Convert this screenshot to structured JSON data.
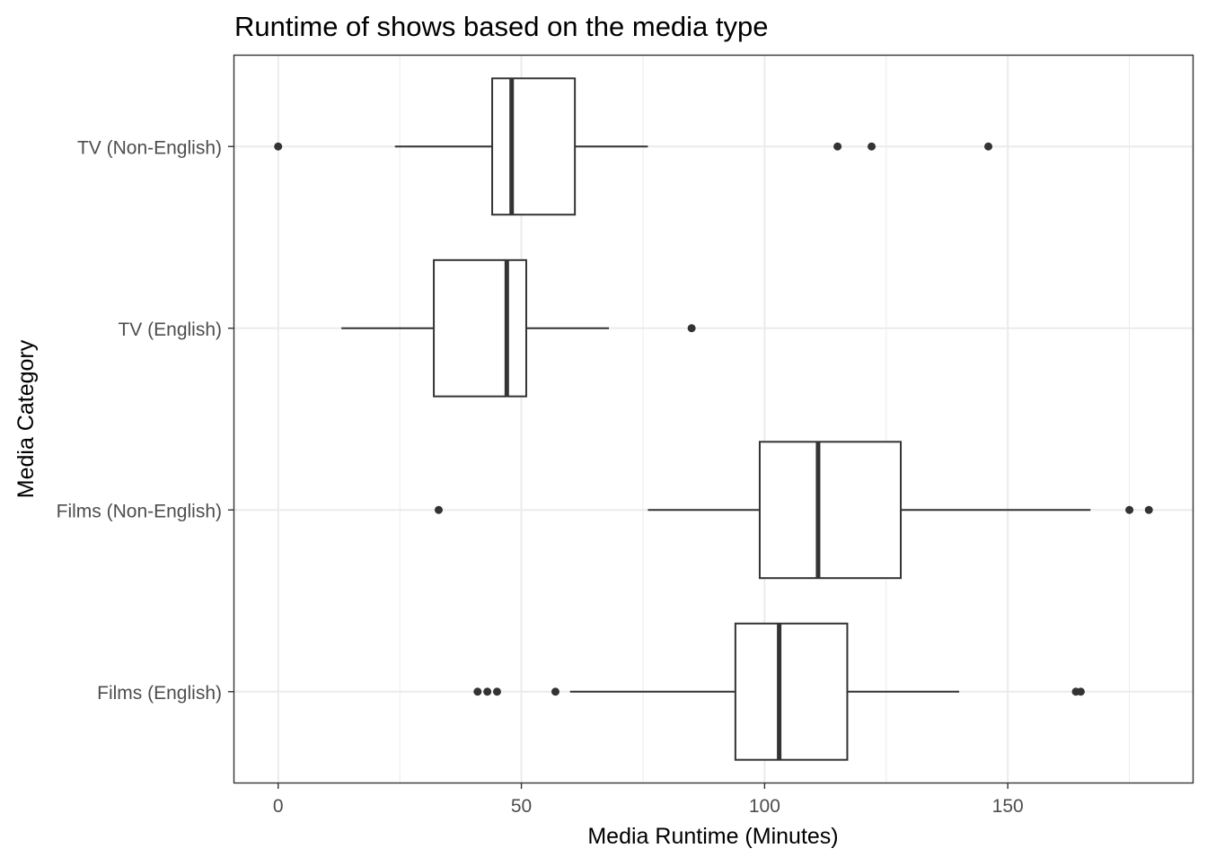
{
  "chart_data": {
    "type": "boxplot",
    "orientation": "horizontal",
    "title": "Runtime of shows based on the media type",
    "xlabel": "Media Runtime (Minutes)",
    "ylabel": "Media Category",
    "xlim": [
      -9,
      188
    ],
    "x_ticks": [
      0,
      50,
      100,
      150
    ],
    "x_tick_labels": [
      "0",
      "50",
      "100",
      "150"
    ],
    "grid": true,
    "categories": [
      "TV (Non-English)",
      "TV (English)",
      "Films (Non-English)",
      "Films (English)"
    ],
    "boxes": [
      {
        "category": "TV (Non-English)",
        "whisker_low": 24,
        "q1": 44,
        "median": 48,
        "q3": 61,
        "whisker_high": 76,
        "outliers": [
          0,
          115,
          122,
          146
        ]
      },
      {
        "category": "TV (English)",
        "whisker_low": 13,
        "q1": 32,
        "median": 47,
        "q3": 51,
        "whisker_high": 68,
        "outliers": [
          85
        ]
      },
      {
        "category": "Films (Non-English)",
        "whisker_low": 76,
        "q1": 99,
        "median": 111,
        "q3": 128,
        "whisker_high": 167,
        "outliers": [
          33,
          175,
          179
        ]
      },
      {
        "category": "Films (English)",
        "whisker_low": 60,
        "q1": 94,
        "median": 103,
        "q3": 117,
        "whisker_high": 140,
        "outliers": [
          41,
          43,
          45,
          57,
          164,
          165
        ]
      }
    ],
    "colors": {
      "box_outline": "#333333",
      "point": "#333333",
      "grid": "#ebebeb",
      "panel_border": "#333333"
    }
  }
}
